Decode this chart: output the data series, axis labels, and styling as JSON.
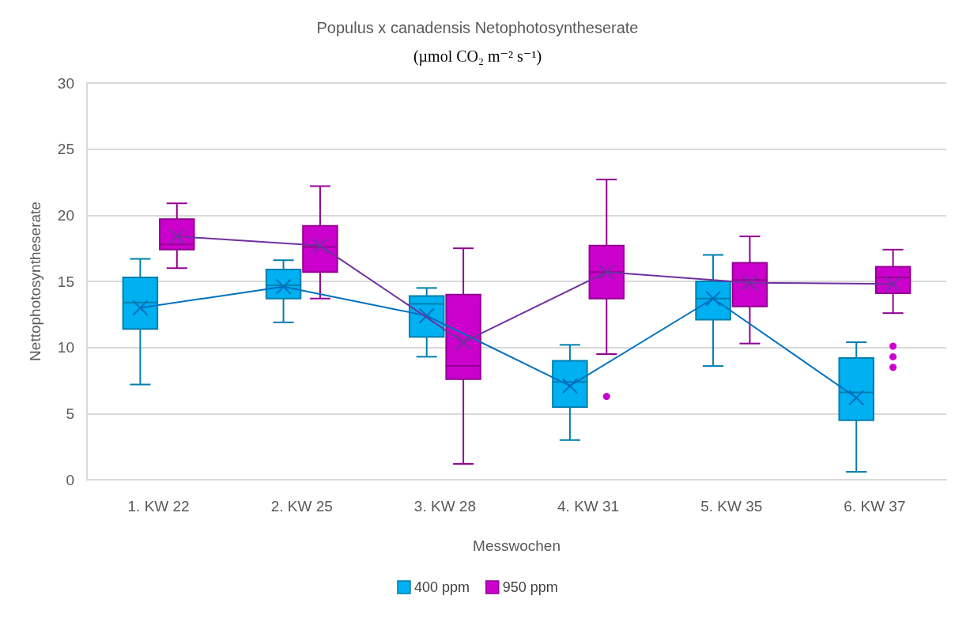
{
  "chart_data": {
    "type": "box",
    "title": "Populus x canadensis Netophotosyntheserate",
    "subtitle": "(µmol CO₂ m⁻² s⁻¹)",
    "xlabel": "Messwochen",
    "ylabel": "Nettophotosyntheserate",
    "categories": [
      "1. KW 22",
      "2. KW 25",
      "3. KW 28",
      "4. KW 31",
      "5. KW 35",
      "6. KW 37"
    ],
    "series": [
      {
        "name": "400 ppm",
        "color": "#00b0f0",
        "boxes": [
          {
            "low": 7.2,
            "q1": 11.4,
            "median": 13.4,
            "q3": 15.3,
            "high": 16.7
          },
          {
            "low": 11.9,
            "q1": 13.7,
            "median": 14.7,
            "q3": 15.9,
            "high": 16.6
          },
          {
            "low": 9.3,
            "q1": 10.8,
            "median": 13.3,
            "q3": 13.9,
            "high": 14.5
          },
          {
            "low": 3.0,
            "q1": 5.5,
            "median": 7.4,
            "q3": 9.0,
            "high": 10.2
          },
          {
            "low": 8.6,
            "q1": 12.1,
            "median": 13.7,
            "q3": 15.0,
            "high": 17.0
          },
          {
            "low": 0.6,
            "q1": 4.5,
            "median": 6.6,
            "q3": 9.2,
            "high": 10.4
          }
        ]
      },
      {
        "name": "950 ppm",
        "color": "#cc00cc",
        "boxes": [
          {
            "low": 16.0,
            "q1": 17.4,
            "median": 17.8,
            "q3": 19.7,
            "high": 20.9
          },
          {
            "low": 13.7,
            "q1": 15.7,
            "median": 17.6,
            "q3": 19.2,
            "high": 22.2
          },
          {
            "low": 1.2,
            "q1": 7.6,
            "median": 8.6,
            "q3": 14.0,
            "high": 17.5
          },
          {
            "low": 9.5,
            "q1": 13.7,
            "median": 15.7,
            "q3": 17.7,
            "high": 22.7,
            "outliers": [
              6.3
            ]
          },
          {
            "low": 10.3,
            "q1": 13.1,
            "median": 15.1,
            "q3": 16.4,
            "high": 18.4
          },
          {
            "low": 12.6,
            "q1": 14.1,
            "median": 15.3,
            "q3": 16.1,
            "high": 17.4,
            "outliers": [
              10.1,
              9.3,
              8.5
            ]
          }
        ]
      },
      {
        "type": "line",
        "color": "#0070c0",
        "marker": "cross",
        "values": [
          13.0,
          14.6,
          12.4,
          7.1,
          13.7,
          6.2
        ]
      },
      {
        "type": "line",
        "color": "#7030a0",
        "marker": "cross",
        "values": [
          18.4,
          17.7,
          10.4,
          15.7,
          14.9,
          14.8
        ]
      }
    ],
    "ylim": [
      0,
      30
    ],
    "yticks": [
      0,
      5,
      10,
      15,
      20,
      25,
      30
    ],
    "grid": "y",
    "legend": "bottom"
  }
}
